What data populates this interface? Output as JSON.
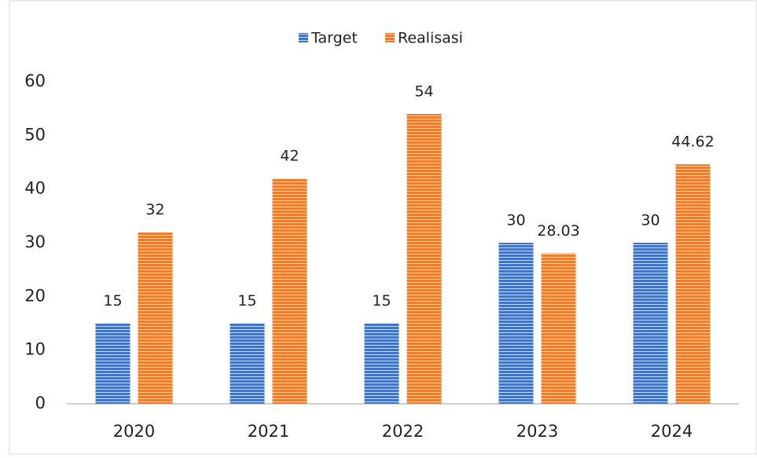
{
  "chart_data": {
    "type": "bar",
    "categories": [
      "2020",
      "2021",
      "2022",
      "2023",
      "2024"
    ],
    "series": [
      {
        "name": "Target",
        "color": "#4472c4",
        "values": [
          15,
          15,
          15,
          30,
          30
        ]
      },
      {
        "name": "Realisasi",
        "color": "#ed7d31",
        "values": [
          32,
          42,
          54,
          28.03,
          44.62
        ]
      }
    ],
    "ylim": [
      0,
      60
    ],
    "yticks": [
      0,
      10,
      20,
      30,
      40,
      50,
      60
    ],
    "grid": false,
    "legend": "top"
  }
}
